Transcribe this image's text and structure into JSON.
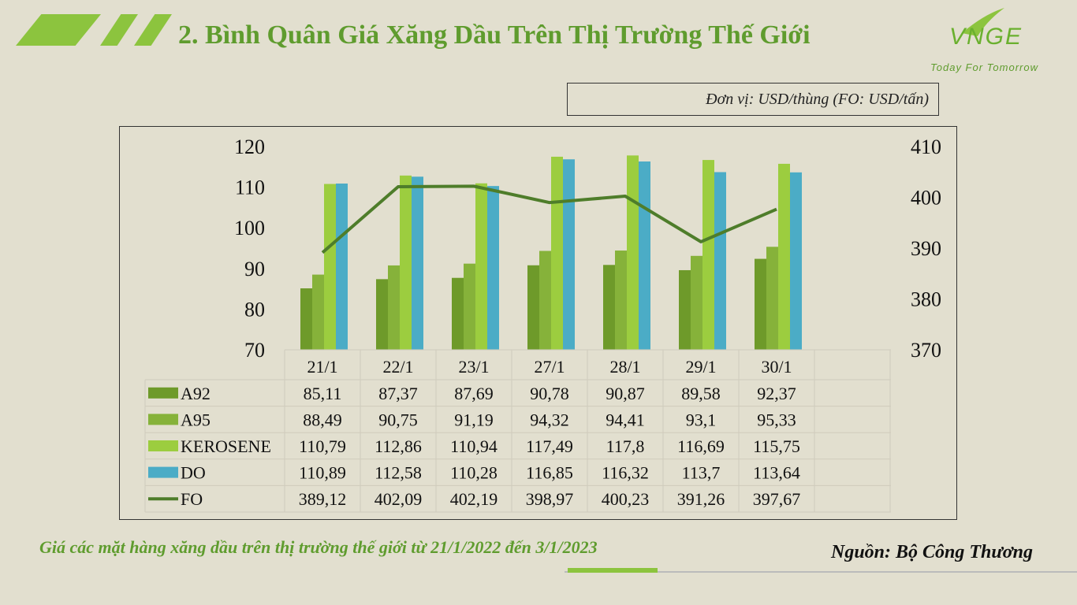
{
  "header": {
    "title": "2. Bình Quân Giá Xăng Dầu Trên Thị Trường Thế Giới",
    "logo_text": "VNGE",
    "tagline": "Today For Tomorrow"
  },
  "unit_note": "Đơn vị: USD/thùng (FO: USD/tấn)",
  "caption": "Giá các mặt hàng xăng dầu trên thị trường thế giới từ 21/1/2022 đến 3/1/2023",
  "source": "Nguồn: Bộ Công Thương",
  "colors": {
    "accent": "#8cc43e",
    "title": "#5f9c2e",
    "background": "#e2dfcf"
  },
  "chart_data": {
    "type": "bar",
    "categories": [
      "21/1",
      "22/1",
      "23/1",
      "27/1",
      "28/1",
      "29/1",
      "30/1"
    ],
    "y_left": {
      "ylim": [
        70,
        120
      ],
      "ticks": [
        "120",
        "110",
        "100",
        "90",
        "80",
        "70"
      ]
    },
    "y_right": {
      "ylim": [
        370,
        410
      ],
      "ticks": [
        "410",
        "400",
        "390",
        "380",
        "370"
      ]
    },
    "series": [
      {
        "name": "A92",
        "kind": "bar",
        "axis": "left",
        "color": "#6e9a2a",
        "values": [
          85.11,
          87.37,
          87.69,
          90.78,
          90.87,
          89.58,
          92.37
        ],
        "labels": [
          "85,11",
          "87,37",
          "87,69",
          "90,78",
          "90,87",
          "89,58",
          "92,37"
        ]
      },
      {
        "name": "A95",
        "kind": "bar",
        "axis": "left",
        "color": "#86b23a",
        "values": [
          88.49,
          90.75,
          91.19,
          94.32,
          94.41,
          93.1,
          95.33
        ],
        "labels": [
          "88,49",
          "90,75",
          "91,19",
          "94,32",
          "94,41",
          "93,1",
          "95,33"
        ]
      },
      {
        "name": "KEROSENE",
        "kind": "bar",
        "axis": "left",
        "color": "#9ccd3f",
        "values": [
          110.79,
          112.86,
          110.94,
          117.49,
          117.8,
          116.69,
          115.75
        ],
        "labels": [
          "110,79",
          "112,86",
          "110,94",
          "117,49",
          "117,8",
          "116,69",
          "115,75"
        ]
      },
      {
        "name": "DO",
        "kind": "bar",
        "axis": "left",
        "color": "#4bacc6",
        "values": [
          110.89,
          112.58,
          110.28,
          116.85,
          116.32,
          113.7,
          113.64
        ],
        "labels": [
          "110,89",
          "112,58",
          "110,28",
          "116,85",
          "116,32",
          "113,7",
          "113,64"
        ]
      },
      {
        "name": "FO",
        "kind": "line",
        "axis": "right",
        "color": "#4e7d2a",
        "values": [
          389.12,
          402.09,
          402.19,
          398.97,
          400.23,
          391.26,
          397.67
        ],
        "labels": [
          "389,12",
          "402,09",
          "402,19",
          "398,97",
          "400,23",
          "391,26",
          "397,67"
        ]
      }
    ],
    "legend": "data-table",
    "grid": false
  }
}
